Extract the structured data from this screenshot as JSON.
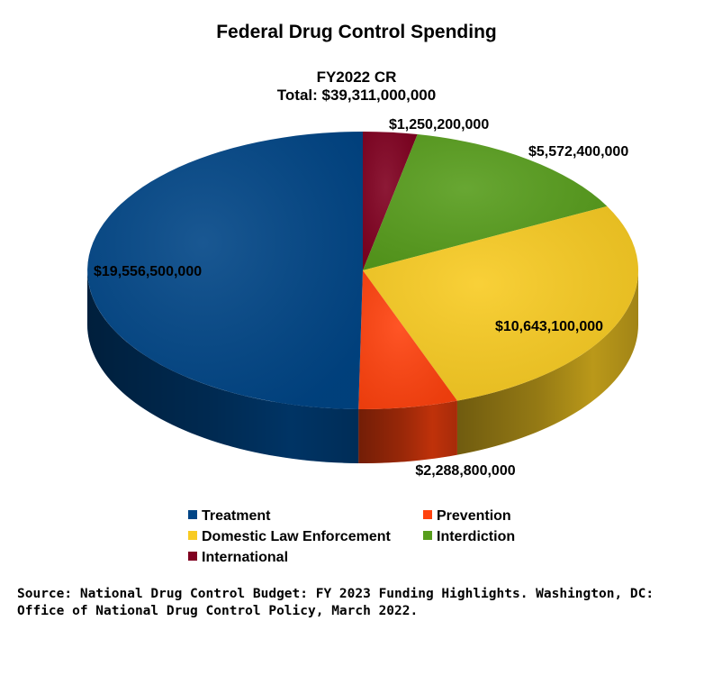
{
  "chart_data": {
    "type": "pie",
    "title": "Federal Drug Control Spending",
    "subtitle_lines": [
      "FY2022 CR",
      "Total: $39,311,000,000"
    ],
    "slices": [
      {
        "name": "International",
        "value": 1250200000,
        "label": "$1,250,200,000",
        "color": "#800020"
      },
      {
        "name": "Interdiction",
        "value": 5572400000,
        "label": "$5,572,400,000",
        "color": "#579D1C"
      },
      {
        "name": "Domestic Law Enforcement",
        "value": 10643100000,
        "label": "$10,643,100,000",
        "color": "#F8CB22"
      },
      {
        "name": "Prevention",
        "value": 2288800000,
        "label": "$2,288,800,000",
        "color": "#FF420E"
      },
      {
        "name": "Treatment",
        "value": 19556500000,
        "label": "$19,556,500,000",
        "color": "#004586"
      }
    ],
    "legend": {
      "placement": "bottom",
      "entries": [
        "Treatment",
        "Prevention",
        "Domestic Law Enforcement",
        "Interdiction",
        "International"
      ]
    },
    "style": "3d-pie"
  },
  "source_lines": [
    "Source: National Drug Control Budget: FY 2023 Funding Highlights. Washington, DC:",
    "Office of National Drug Control Policy, March 2022."
  ]
}
